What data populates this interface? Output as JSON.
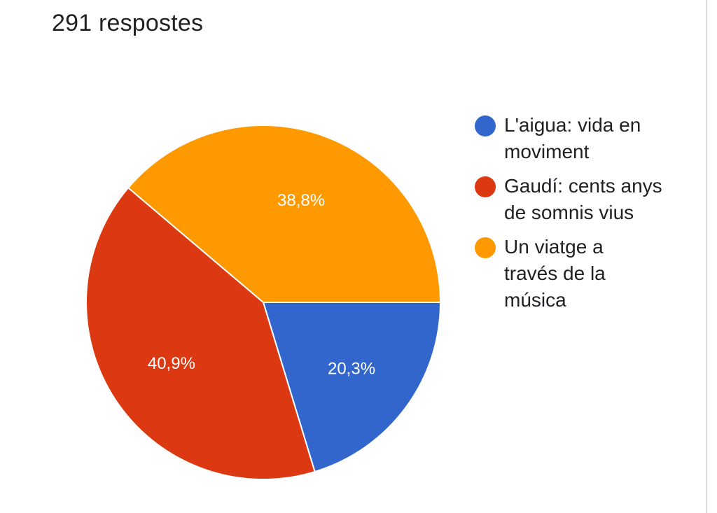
{
  "header": {
    "responses": "291 respostes"
  },
  "chart_data": {
    "type": "pie",
    "categories": [
      "L'aigua: vida en moviment",
      "Gaudí: cents anys de somnis vius",
      "Un viatge a través de la música"
    ],
    "values": [
      20.3,
      40.9,
      38.8
    ],
    "value_labels": [
      "20,3%",
      "40,9%",
      "38,8%"
    ],
    "colors": [
      "#3366cc",
      "#dc3912",
      "#ff9900"
    ],
    "legend_placement": "right"
  },
  "legend": {
    "items": [
      {
        "label": "L'aigua: vida en moviment",
        "color": "#3366cc"
      },
      {
        "label": "Gaudí: cents anys de somnis vius",
        "color": "#dc3912"
      },
      {
        "label": "Un viatge a través de la música",
        "color": "#ff9900"
      }
    ]
  }
}
